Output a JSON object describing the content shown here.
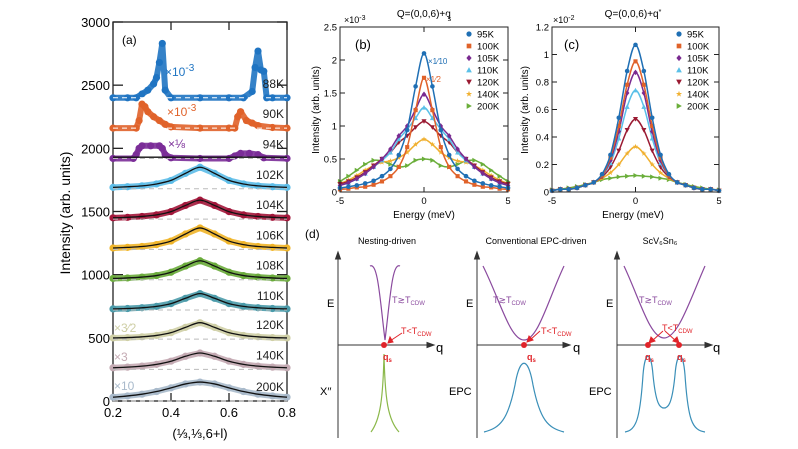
{
  "chart_data": [
    {
      "panel": "(a)",
      "type": "scatter",
      "xlabel": "(⅓,⅓,6+l)",
      "ylabel": "Intensity (arb. units)",
      "xlim": [
        0.2,
        0.8
      ],
      "ylim": [
        0,
        3000
      ],
      "xticks": [
        "0.2",
        "0.4",
        "0.6",
        "0.8"
      ],
      "yticks": [
        "0",
        "500",
        "1000",
        "1500",
        "2000",
        "2500",
        "3000"
      ],
      "series": [
        {
          "name": "88K",
          "color": "#1f74c2",
          "baseline": 2400,
          "fit": "none",
          "scale": "×10",
          "scale_exp": "-3",
          "x": [
            0.2,
            0.25,
            0.28,
            0.3,
            0.32,
            0.34,
            0.35,
            0.36,
            0.37,
            0.38,
            0.4,
            0.5,
            0.6,
            0.65,
            0.68,
            0.69,
            0.7,
            0.71,
            0.72,
            0.73,
            0.75,
            0.8
          ],
          "y": [
            2400,
            2400,
            2400,
            2430,
            2460,
            2510,
            2560,
            2680,
            2830,
            2460,
            2400,
            2400,
            2400,
            2400,
            2450,
            2640,
            2770,
            2620,
            2610,
            2400,
            2400,
            2400
          ]
        },
        {
          "name": "90K",
          "color": "#e0622a",
          "baseline": 2160,
          "fit": "none",
          "scale": "×10",
          "scale_exp": "-3",
          "x": [
            0.2,
            0.28,
            0.29,
            0.3,
            0.31,
            0.32,
            0.34,
            0.36,
            0.38,
            0.4,
            0.5,
            0.6,
            0.62,
            0.63,
            0.64,
            0.66,
            0.68,
            0.7,
            0.75,
            0.8
          ],
          "y": [
            2160,
            2160,
            2220,
            2350,
            2330,
            2290,
            2250,
            2220,
            2190,
            2170,
            2160,
            2160,
            2160,
            2250,
            2290,
            2220,
            2200,
            2180,
            2165,
            2160
          ]
        },
        {
          "name": "94K",
          "color": "#7b2d98",
          "baseline": 1920,
          "fit": "flat",
          "fit_level": 1930,
          "scale": "×⅛",
          "x": [
            0.2,
            0.27,
            0.28,
            0.29,
            0.3,
            0.33,
            0.36,
            0.37,
            0.38,
            0.4,
            0.5,
            0.6,
            0.62,
            0.64,
            0.67,
            0.7,
            0.72,
            0.8
          ],
          "y": [
            1920,
            1920,
            1950,
            2000,
            2020,
            2020,
            2020,
            2000,
            1950,
            1925,
            1920,
            1920,
            1940,
            1960,
            1960,
            1950,
            1925,
            1920
          ]
        },
        {
          "name": "102K",
          "color": "#5dbde8",
          "baseline": 1680,
          "fit": "curve",
          "x": [
            0.2,
            0.25,
            0.3,
            0.35,
            0.4,
            0.45,
            0.5,
            0.55,
            0.6,
            0.65,
            0.7,
            0.75,
            0.8
          ],
          "y": [
            1691,
            1696,
            1703,
            1718,
            1746,
            1802,
            1850,
            1802,
            1746,
            1718,
            1703,
            1696,
            1691
          ]
        },
        {
          "name": "104K",
          "color": "#a3173b",
          "baseline": 1440,
          "fit": "curve",
          "x": [
            0.2,
            0.25,
            0.3,
            0.35,
            0.4,
            0.45,
            0.5,
            0.55,
            0.6,
            0.65,
            0.7,
            0.75,
            0.8
          ],
          "y": [
            1450,
            1454,
            1461,
            1473,
            1499,
            1548,
            1590,
            1548,
            1499,
            1473,
            1461,
            1454,
            1450
          ]
        },
        {
          "name": "106K",
          "color": "#f0b52a",
          "baseline": 1200,
          "fit": "curve",
          "x": [
            0.2,
            0.25,
            0.3,
            0.35,
            0.4,
            0.45,
            0.5,
            0.55,
            0.6,
            0.65,
            0.7,
            0.75,
            0.8
          ],
          "y": [
            1211,
            1216,
            1223,
            1238,
            1266,
            1322,
            1370,
            1322,
            1266,
            1238,
            1223,
            1216,
            1211
          ]
        },
        {
          "name": "108K",
          "color": "#6aab3b",
          "baseline": 960,
          "fit": "curve",
          "x": [
            0.2,
            0.25,
            0.3,
            0.35,
            0.4,
            0.45,
            0.5,
            0.55,
            0.6,
            0.65,
            0.7,
            0.75,
            0.8
          ],
          "y": [
            970,
            974,
            981,
            993,
            1019,
            1068,
            1110,
            1068,
            1019,
            993,
            981,
            974,
            970
          ]
        },
        {
          "name": "110K",
          "color": "#4b9baa",
          "baseline": 720,
          "fit": "curve",
          "x": [
            0.2,
            0.25,
            0.3,
            0.35,
            0.4,
            0.45,
            0.5,
            0.55,
            0.6,
            0.65,
            0.7,
            0.75,
            0.8
          ],
          "y": [
            729,
            732,
            738,
            749,
            771,
            813,
            850,
            813,
            771,
            749,
            738,
            732,
            729
          ]
        },
        {
          "name": "120K",
          "color": "#cfcfa6",
          "baseline": 490,
          "fit": "curve",
          "scale": "×3⁄2",
          "x": [
            0.2,
            0.25,
            0.3,
            0.35,
            0.4,
            0.45,
            0.5,
            0.55,
            0.6,
            0.65,
            0.7,
            0.75,
            0.8
          ],
          "y": [
            499,
            502,
            508,
            519,
            541,
            583,
            620,
            583,
            541,
            519,
            508,
            502,
            499
          ]
        },
        {
          "name": "140K",
          "color": "#c4aab3",
          "baseline": 250,
          "fit": "curve",
          "scale": "×3",
          "x": [
            0.2,
            0.25,
            0.3,
            0.35,
            0.4,
            0.45,
            0.5,
            0.55,
            0.6,
            0.65,
            0.7,
            0.75,
            0.8
          ],
          "y": [
            263,
            268,
            276,
            290,
            315,
            354,
            380,
            354,
            315,
            290,
            276,
            268,
            263
          ]
        },
        {
          "name": "200K",
          "color": "#a9bacb",
          "baseline": 0,
          "fit": "curve",
          "scale": "×10",
          "x": [
            0.2,
            0.25,
            0.3,
            0.35,
            0.4,
            0.45,
            0.5,
            0.55,
            0.6,
            0.65,
            0.7,
            0.75,
            0.8
          ],
          "y": [
            30,
            40,
            54,
            75,
            104,
            135,
            150,
            135,
            104,
            75,
            54,
            40,
            30
          ]
        }
      ]
    },
    {
      "panel": "(b)",
      "type": "line",
      "title": "Q=(0,0,6)+q",
      "title_bold_part": "q",
      "title_sub": "s",
      "xlabel": "Energy (meV)",
      "ylabel": "Intensity (arb. units)",
      "y_multiplier": "×10",
      "y_multiplier_exp": "-3",
      "xlim": [
        -5,
        5
      ],
      "ylim": [
        0,
        2.5
      ],
      "xticks": [
        "-5",
        "0",
        "5"
      ],
      "yticks": [
        "0",
        "0.5",
        "1",
        "1.5",
        "2",
        "2.5"
      ],
      "legend": "top-right",
      "annotations": [
        {
          "text": "×1⁄10",
          "series": "95K"
        },
        {
          "text": "×1⁄2",
          "series": "100K"
        }
      ],
      "x": [
        -5,
        -4.5,
        -4,
        -3.5,
        -3,
        -2.5,
        -2,
        -1.5,
        -1,
        -0.5,
        0,
        0.5,
        1,
        1.5,
        2,
        2.5,
        3,
        3.5,
        4,
        4.5,
        5
      ],
      "series": [
        {
          "name": "95K",
          "color": "#1f6fb4",
          "marker": "circle",
          "values": [
            0.06,
            0.08,
            0.1,
            0.13,
            0.17,
            0.24,
            0.35,
            0.56,
            0.94,
            1.6,
            2.1,
            1.6,
            0.94,
            0.56,
            0.35,
            0.24,
            0.17,
            0.13,
            0.1,
            0.08,
            0.06
          ]
        },
        {
          "name": "100K",
          "color": "#e0622a",
          "marker": "square",
          "values": [
            0.04,
            0.05,
            0.07,
            0.08,
            0.11,
            0.16,
            0.24,
            0.38,
            0.68,
            1.24,
            1.73,
            1.24,
            0.68,
            0.38,
            0.24,
            0.16,
            0.11,
            0.08,
            0.07,
            0.05,
            0.04
          ]
        },
        {
          "name": "105K",
          "color": "#7a2a90",
          "marker": "diamond",
          "values": [
            0.1,
            0.14,
            0.2,
            0.28,
            0.38,
            0.5,
            0.65,
            0.85,
            1.0,
            1.25,
            1.48,
            1.25,
            1.0,
            0.85,
            0.65,
            0.5,
            0.38,
            0.28,
            0.2,
            0.14,
            0.1
          ]
        },
        {
          "name": "110K",
          "color": "#5ac0e8",
          "marker": "triangle-up",
          "values": [
            0.1,
            0.14,
            0.2,
            0.28,
            0.38,
            0.48,
            0.6,
            0.8,
            0.95,
            1.12,
            1.28,
            1.12,
            0.95,
            0.8,
            0.6,
            0.48,
            0.38,
            0.28,
            0.2,
            0.14,
            0.1
          ]
        },
        {
          "name": "120K",
          "color": "#9a1a32",
          "marker": "triangle-down",
          "values": [
            0.12,
            0.16,
            0.22,
            0.3,
            0.4,
            0.5,
            0.6,
            0.75,
            0.85,
            0.98,
            1.07,
            0.98,
            0.85,
            0.75,
            0.6,
            0.5,
            0.4,
            0.3,
            0.22,
            0.16,
            0.12
          ]
        },
        {
          "name": "140K",
          "color": "#f0b030",
          "marker": "star",
          "values": [
            0.13,
            0.18,
            0.25,
            0.33,
            0.4,
            0.45,
            0.47,
            0.52,
            0.6,
            0.72,
            0.8,
            0.72,
            0.6,
            0.52,
            0.47,
            0.45,
            0.4,
            0.33,
            0.25,
            0.18,
            0.13
          ]
        },
        {
          "name": "200K",
          "color": "#6aae3a",
          "marker": "triangle-right",
          "values": [
            0.16,
            0.24,
            0.33,
            0.42,
            0.48,
            0.47,
            0.42,
            0.38,
            0.4,
            0.48,
            0.5,
            0.48,
            0.4,
            0.38,
            0.42,
            0.47,
            0.48,
            0.42,
            0.33,
            0.24,
            0.16
          ]
        }
      ]
    },
    {
      "panel": "(c)",
      "type": "line",
      "title": "Q=(0,0,6)+q",
      "title_bold_part": "q",
      "title_sup": "*",
      "xlabel": "Energy (meV)",
      "ylabel": "Intensity (arb. units)",
      "y_multiplier": "×10",
      "y_multiplier_exp": "-2",
      "xlim": [
        -5,
        5
      ],
      "ylim": [
        0,
        1.2
      ],
      "xticks": [
        "-5",
        "0",
        "5"
      ],
      "yticks": [
        "0",
        "0.2",
        "0.4",
        "0.6",
        "0.8",
        "1",
        "1.2"
      ],
      "legend": "top-right",
      "x": [
        -5,
        -4.5,
        -4,
        -3.5,
        -3,
        -2.5,
        -2,
        -1.5,
        -1,
        -0.5,
        0,
        0.5,
        1,
        1.5,
        2,
        2.5,
        3,
        3.5,
        4,
        4.5,
        5
      ],
      "series": [
        {
          "name": "95K",
          "color": "#1f6fb4",
          "marker": "circle",
          "values": [
            0.01,
            0.02,
            0.02,
            0.03,
            0.05,
            0.07,
            0.13,
            0.27,
            0.54,
            0.88,
            1.07,
            0.88,
            0.54,
            0.27,
            0.13,
            0.07,
            0.05,
            0.03,
            0.02,
            0.02,
            0.01
          ]
        },
        {
          "name": "100K",
          "color": "#e0622a",
          "marker": "square",
          "values": [
            0.01,
            0.02,
            0.02,
            0.03,
            0.05,
            0.07,
            0.12,
            0.25,
            0.48,
            0.78,
            0.95,
            0.78,
            0.48,
            0.25,
            0.12,
            0.07,
            0.05,
            0.03,
            0.02,
            0.02,
            0.01
          ]
        },
        {
          "name": "105K",
          "color": "#7a2a90",
          "marker": "diamond",
          "values": [
            0.01,
            0.02,
            0.02,
            0.03,
            0.05,
            0.07,
            0.12,
            0.23,
            0.44,
            0.72,
            0.87,
            0.72,
            0.44,
            0.23,
            0.12,
            0.07,
            0.05,
            0.03,
            0.02,
            0.02,
            0.01
          ]
        },
        {
          "name": "110K",
          "color": "#5ac0e8",
          "marker": "triangle-up",
          "values": [
            0.01,
            0.02,
            0.02,
            0.03,
            0.05,
            0.07,
            0.12,
            0.21,
            0.39,
            0.62,
            0.74,
            0.62,
            0.39,
            0.21,
            0.12,
            0.07,
            0.05,
            0.03,
            0.02,
            0.02,
            0.01
          ]
        },
        {
          "name": "120K",
          "color": "#9a1a32",
          "marker": "triangle-down",
          "values": [
            0.01,
            0.02,
            0.02,
            0.03,
            0.05,
            0.07,
            0.11,
            0.18,
            0.3,
            0.45,
            0.53,
            0.45,
            0.3,
            0.18,
            0.11,
            0.07,
            0.05,
            0.03,
            0.02,
            0.02,
            0.01
          ]
        },
        {
          "name": "140K",
          "color": "#f0b030",
          "marker": "star",
          "values": [
            0.01,
            0.02,
            0.02,
            0.03,
            0.05,
            0.07,
            0.1,
            0.14,
            0.2,
            0.28,
            0.33,
            0.28,
            0.2,
            0.14,
            0.1,
            0.07,
            0.05,
            0.03,
            0.02,
            0.02,
            0.01
          ]
        },
        {
          "name": "200K",
          "color": "#6aae3a",
          "marker": "triangle-right",
          "values": [
            0.015,
            0.02,
            0.03,
            0.04,
            0.055,
            0.07,
            0.09,
            0.1,
            0.11,
            0.115,
            0.12,
            0.115,
            0.11,
            0.1,
            0.09,
            0.07,
            0.055,
            0.04,
            0.03,
            0.02,
            0.015
          ]
        }
      ]
    }
  ],
  "diagram": {
    "panel": "(d)",
    "titles": [
      "Nesting-driven",
      "Conventional EPC-driven",
      "ScV₆Sn₆"
    ],
    "e_axis": "E",
    "q_axis": "q",
    "lower_labels": [
      "X′′",
      "EPC",
      "EPC"
    ],
    "t_high": "T≳T",
    "t_low": "T<T",
    "t_sub": "CDW",
    "qs": "q",
    "qs_sub": "s",
    "colors": {
      "dispersion": "#8a4a9e",
      "red": "#e0242a",
      "chi": "#8bb84a",
      "epc": "#3a8fb8"
    }
  }
}
